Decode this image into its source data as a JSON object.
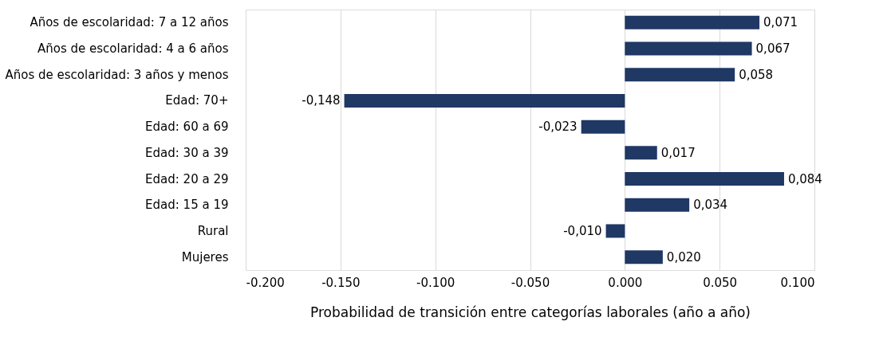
{
  "chart_data": {
    "type": "bar",
    "orientation": "horizontal",
    "xlabel": "Probabilidad de transición entre categorías laborales (año a año)",
    "categories": [
      "Años de escolaridad: 7 a 12 años",
      "Años de escolaridad: 4 a 6 años",
      "Años de escolaridad: 3 años y menos",
      "Edad: 70+",
      "Edad: 60 a 69",
      "Edad: 30 a 39",
      "Edad: 20 a 29",
      "Edad: 15 a 19",
      "Rural",
      "Mujeres"
    ],
    "values": [
      0.071,
      0.067,
      0.058,
      -0.148,
      -0.023,
      0.017,
      0.084,
      0.034,
      -0.01,
      0.02
    ],
    "value_labels": [
      "0,071",
      "0,067",
      "0,058",
      "-0,148",
      "-0,023",
      "0,017",
      "0,084",
      "0,034",
      "-0,010",
      "0,020"
    ],
    "color": "#1f3864",
    "xlim": [
      -0.2,
      0.1
    ],
    "xticks": [
      {
        "value": -0.2,
        "label": "-0.200"
      },
      {
        "value": -0.15,
        "label": "-0.150"
      },
      {
        "value": -0.1,
        "label": "-0.100"
      },
      {
        "value": -0.05,
        "label": "-0.050"
      },
      {
        "value": 0,
        "label": "0.000"
      },
      {
        "value": 0.05,
        "label": "0.050"
      },
      {
        "value": 0.1,
        "label": "0.100"
      }
    ],
    "grid": "x"
  }
}
